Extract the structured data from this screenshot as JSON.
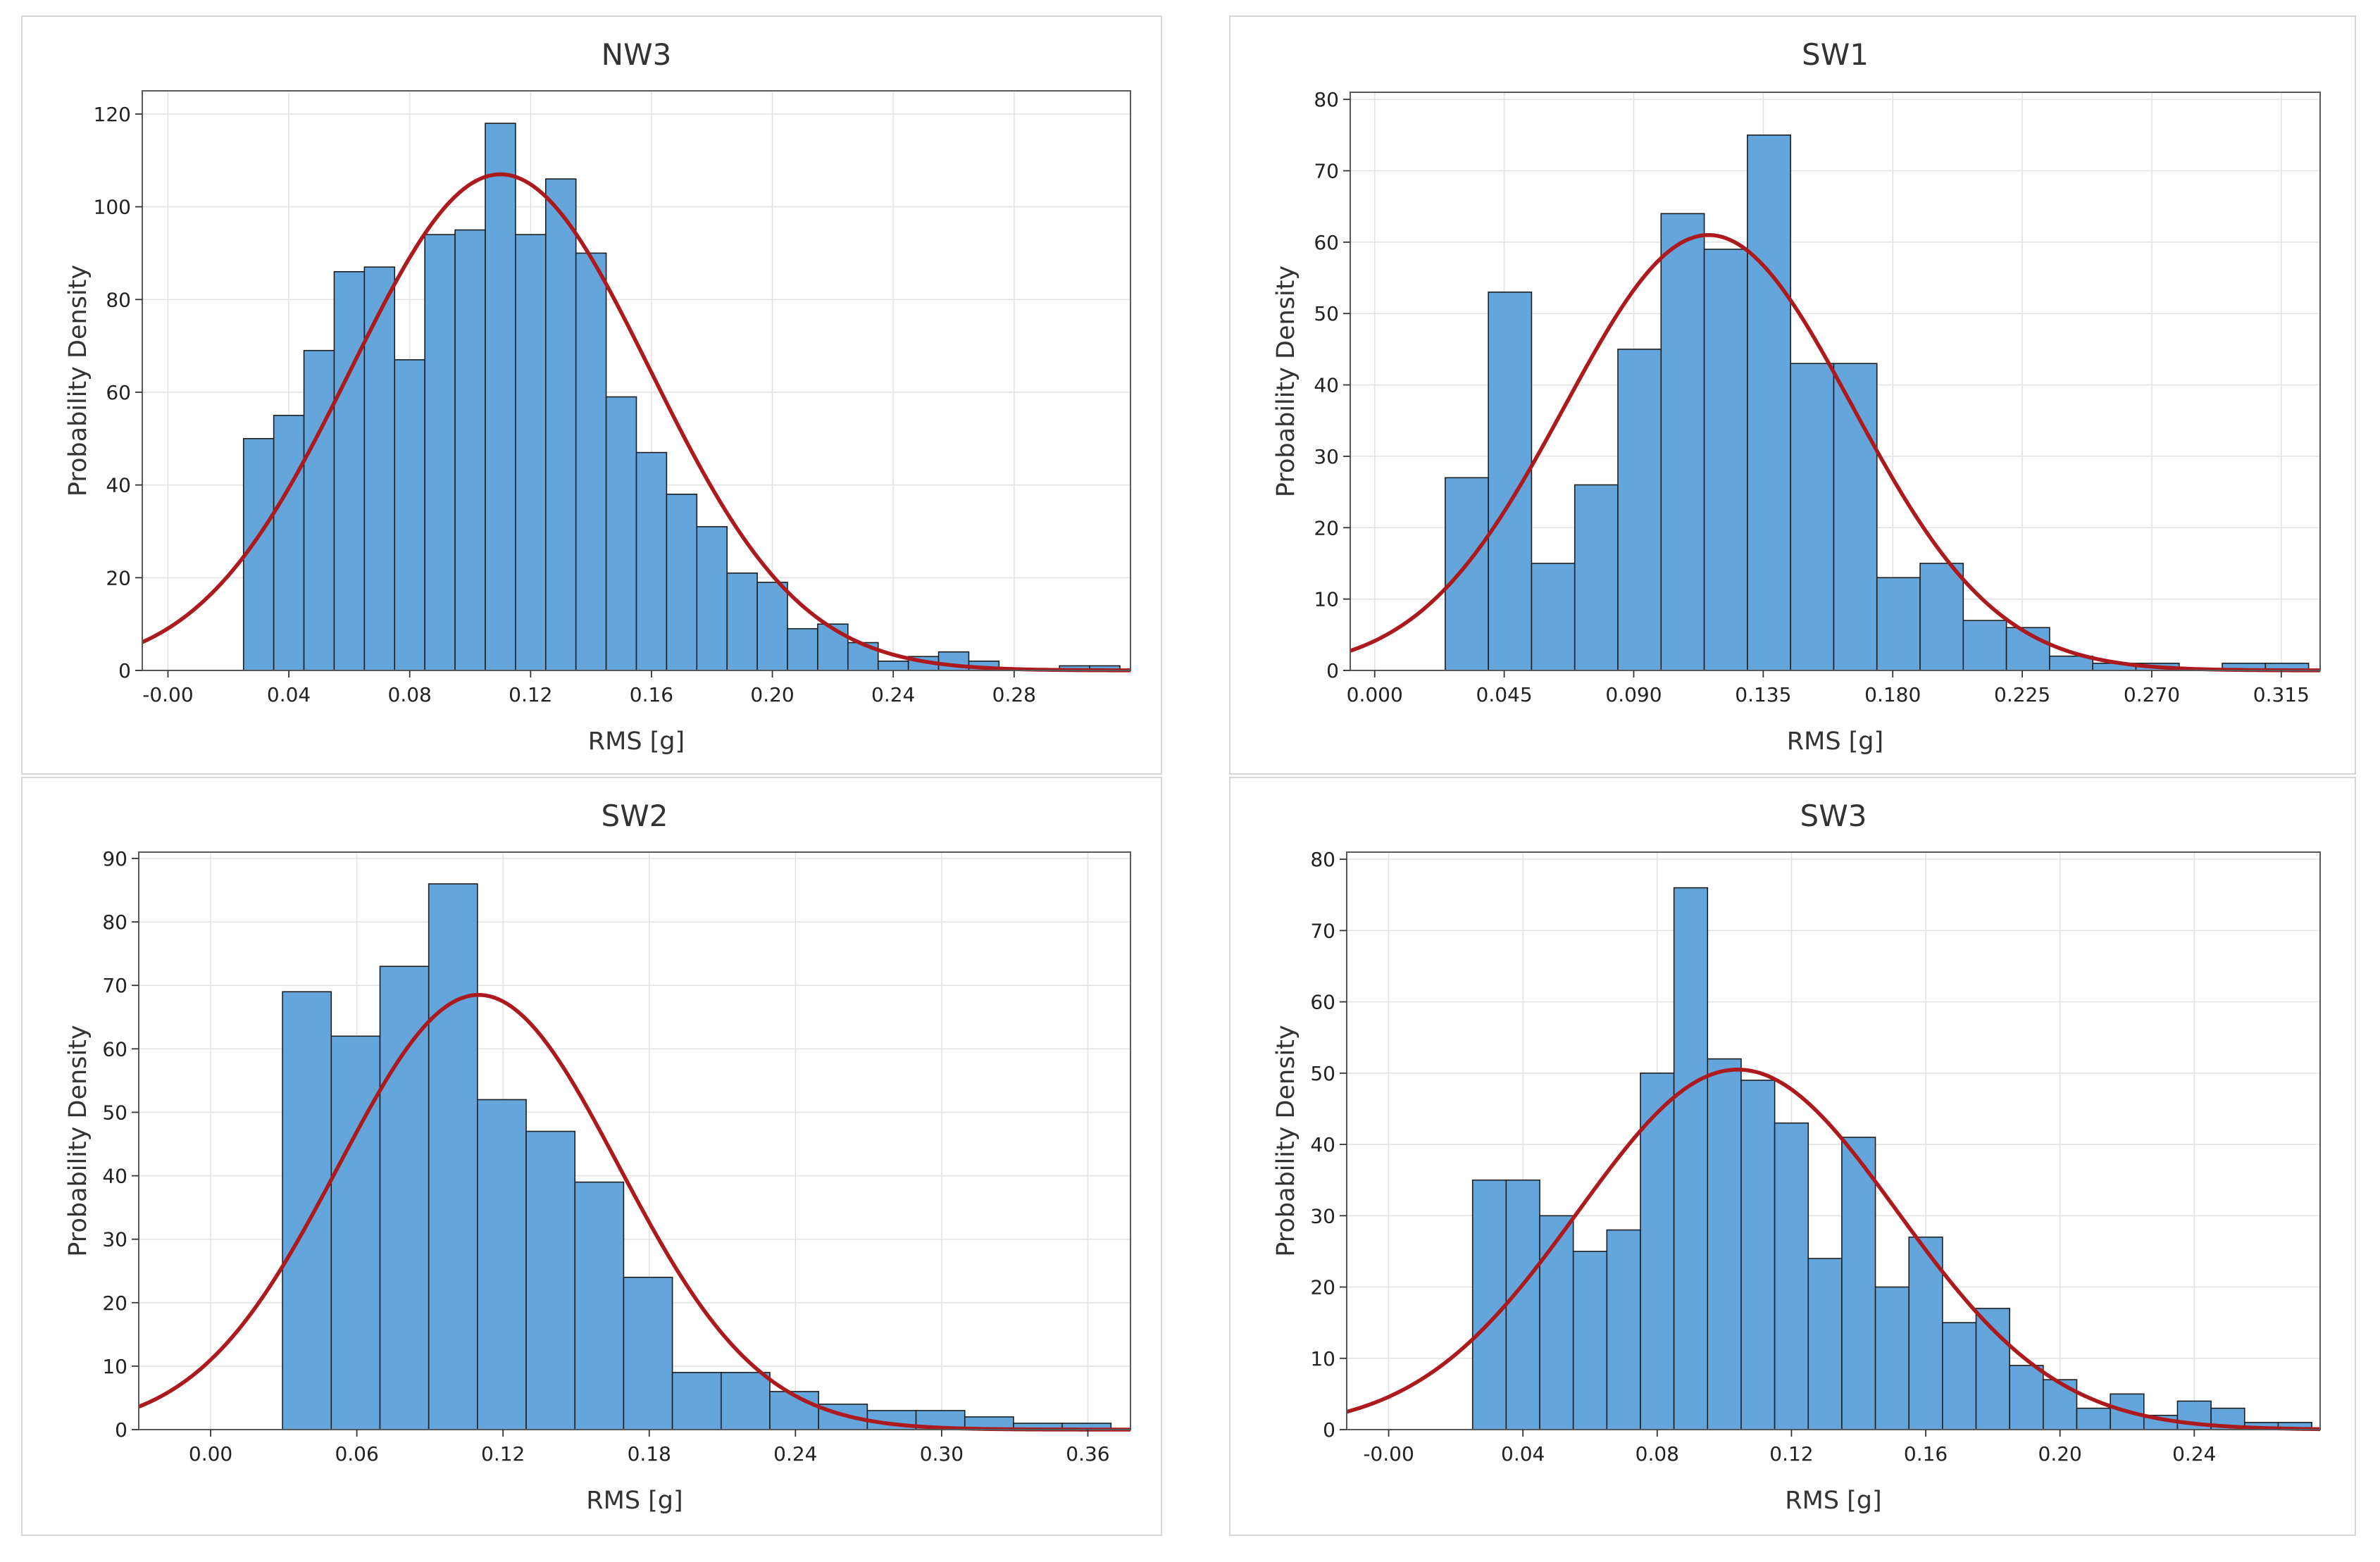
{
  "figure": {
    "background": "#ffffff"
  },
  "chart_data": [
    {
      "type": "bar",
      "title": "NW3",
      "xlabel": "RMS [g]",
      "ylabel": "Probability Density",
      "xlim": [
        -0.0085,
        0.3185
      ],
      "ylim": [
        0,
        125
      ],
      "xticks": [
        0.0,
        0.04,
        0.08,
        0.12,
        0.16,
        0.2,
        0.24,
        0.28
      ],
      "xtick_labels": [
        "-0.00",
        "0.04",
        "0.08",
        "0.12",
        "0.16",
        "0.20",
        "0.24",
        "0.28"
      ],
      "yticks": [
        0,
        20,
        40,
        60,
        80,
        100,
        120
      ],
      "ytick_labels": [
        "0",
        "20",
        "40",
        "60",
        "80",
        "100",
        "120"
      ],
      "bin_start": 0.025,
      "bin_width": 0.01,
      "values": [
        50,
        55,
        69,
        86,
        87,
        67,
        94,
        95,
        118,
        94,
        106,
        90,
        59,
        47,
        38,
        31,
        21,
        19,
        9,
        10,
        6,
        2,
        3,
        4,
        2,
        0,
        0,
        1,
        1
      ],
      "fit": {
        "mean": 0.11,
        "sd": 0.0495,
        "peak": 107
      },
      "bar_color": "#64a6dc",
      "curve_color": "#ad1a1e"
    },
    {
      "type": "bar",
      "title": "SW1",
      "xlabel": "RMS [g]",
      "ylabel": "Probability Density",
      "xlim": [
        -0.0085,
        0.3285
      ],
      "ylim": [
        0,
        81
      ],
      "xticks": [
        0.0,
        0.045,
        0.09,
        0.135,
        0.18,
        0.225,
        0.27,
        0.315
      ],
      "xtick_labels": [
        "0.000",
        "0.045",
        "0.090",
        "0.135",
        "0.180",
        "0.225",
        "0.270",
        "0.315"
      ],
      "yticks": [
        0,
        10,
        20,
        30,
        40,
        50,
        60,
        70,
        80
      ],
      "ytick_labels": [
        "0",
        "10",
        "20",
        "30",
        "40",
        "50",
        "60",
        "70",
        "80"
      ],
      "bin_start": 0.0245,
      "bin_width": 0.015,
      "values": [
        27,
        53,
        15,
        26,
        45,
        64,
        59,
        75,
        43,
        43,
        13,
        15,
        7,
        6,
        2,
        1,
        1,
        0,
        1,
        1
      ],
      "fit": {
        "mean": 0.116,
        "sd": 0.05,
        "peak": 61
      },
      "bar_color": "#64a6dc",
      "curve_color": "#ad1a1e"
    },
    {
      "type": "bar",
      "title": "SW2",
      "xlabel": "RMS [g]",
      "ylabel": "Probability Density",
      "xlim": [
        -0.0295,
        0.3775
      ],
      "ylim": [
        0,
        91
      ],
      "xticks": [
        0.0,
        0.06,
        0.12,
        0.18,
        0.24,
        0.3,
        0.36
      ],
      "xtick_labels": [
        "0.00",
        "0.06",
        "0.12",
        "0.18",
        "0.24",
        "0.30",
        "0.36"
      ],
      "yticks": [
        0,
        10,
        20,
        30,
        40,
        50,
        60,
        70,
        80,
        90
      ],
      "ytick_labels": [
        "0",
        "10",
        "20",
        "30",
        "40",
        "50",
        "60",
        "70",
        "80",
        "90"
      ],
      "bin_start": 0.0295,
      "bin_width": 0.02,
      "values": [
        69,
        62,
        73,
        86,
        52,
        47,
        39,
        24,
        9,
        9,
        6,
        4,
        3,
        3,
        2,
        1,
        1
      ],
      "fit": {
        "mean": 0.11,
        "sd": 0.0575,
        "peak": 68.5
      },
      "bar_color": "#64a6dc",
      "curve_color": "#ad1a1e"
    },
    {
      "type": "bar",
      "title": "SW3",
      "xlabel": "RMS [g]",
      "ylabel": "Probability Density",
      "xlim": [
        -0.0125,
        0.2775
      ],
      "ylim": [
        0,
        81
      ],
      "xticks": [
        0.0,
        0.04,
        0.08,
        0.12,
        0.16,
        0.2,
        0.24
      ],
      "xtick_labels": [
        "-0.00",
        "0.04",
        "0.08",
        "0.12",
        "0.16",
        "0.20",
        "0.24"
      ],
      "yticks": [
        0,
        10,
        20,
        30,
        40,
        50,
        60,
        70,
        80
      ],
      "ytick_labels": [
        "0",
        "10",
        "20",
        "30",
        "40",
        "50",
        "60",
        "70",
        "80"
      ],
      "bin_start": 0.025,
      "bin_width": 0.01,
      "values": [
        35,
        35,
        30,
        25,
        28,
        50,
        76,
        52,
        49,
        43,
        24,
        41,
        20,
        27,
        15,
        17,
        9,
        7,
        3,
        5,
        2,
        4,
        3,
        1,
        1
      ],
      "fit": {
        "mean": 0.104,
        "sd": 0.0475,
        "peak": 50.5
      },
      "bar_color": "#64a6dc",
      "curve_color": "#ad1a1e"
    }
  ]
}
